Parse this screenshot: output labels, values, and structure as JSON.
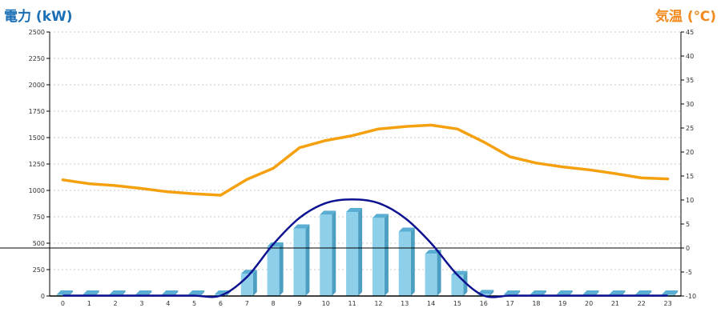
{
  "header": {
    "left_title": "電力 (kW)",
    "right_title": "気温 (℃)"
  },
  "colors": {
    "left_title": "#1a6fb5",
    "right_title": "#f28a1f",
    "bar_face": "#8ecfea",
    "bar_side": "#4d9fc2",
    "bar_top": "#5aaed3",
    "power_line": "#0d1290",
    "temp_line": "#f5a00f",
    "grid": "#c8c8c8",
    "zero_line": "#000000"
  },
  "chart_data": {
    "type": "bar",
    "categories": [
      "0",
      "1",
      "2",
      "3",
      "4",
      "5",
      "6",
      "7",
      "8",
      "9",
      "10",
      "11",
      "12",
      "13",
      "14",
      "15",
      "16",
      "17",
      "18",
      "19",
      "20",
      "21",
      "22",
      "23"
    ],
    "ylabel": "電力 (kW)",
    "y2label": "気温 (℃)",
    "ylim": [
      0,
      2500
    ],
    "y2lim": [
      -10,
      45
    ],
    "y_ticks": [
      "0",
      "250",
      "500",
      "750",
      "1000",
      "1250",
      "1500",
      "1750",
      "2000",
      "2250",
      "2500"
    ],
    "y2_ticks": [
      "-10",
      "-5",
      "0",
      "5",
      "10",
      "15",
      "20",
      "25",
      "30",
      "35",
      "40",
      "45"
    ],
    "grid": true,
    "series": [
      {
        "type": "bar",
        "axis": "left",
        "values": [
          0,
          0,
          0,
          0,
          0,
          0,
          10,
          210,
          470,
          640,
          770,
          795,
          740,
          610,
          400,
          200,
          20,
          0,
          0,
          0,
          0,
          0,
          0,
          0
        ]
      },
      {
        "type": "line",
        "axis": "left",
        "values": [
          0,
          0,
          0,
          0,
          0,
          0,
          0,
          180,
          490,
          740,
          880,
          915,
          880,
          740,
          500,
          200,
          0,
          0,
          0,
          0,
          0,
          0,
          0,
          0
        ]
      },
      {
        "type": "line",
        "axis": "right",
        "values": [
          14.2,
          13.4,
          13.0,
          12.4,
          11.7,
          11.3,
          11.0,
          14.3,
          16.6,
          20.9,
          22.4,
          23.4,
          24.8,
          25.3,
          25.6,
          24.8,
          22.1,
          19.0,
          17.7,
          16.9,
          16.3,
          15.5,
          14.6,
          14.4
        ]
      }
    ]
  }
}
